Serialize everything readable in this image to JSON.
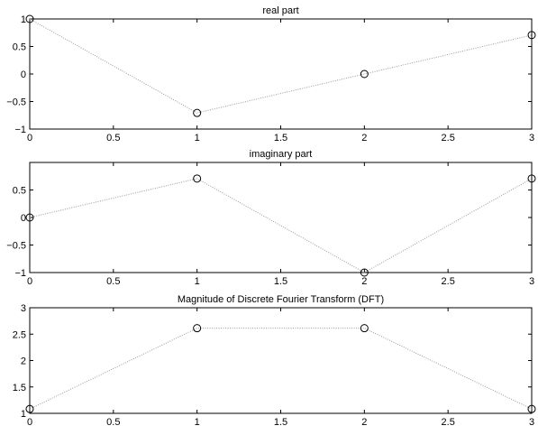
{
  "chart_data": [
    {
      "type": "line",
      "title": "real part",
      "xlabel": "",
      "ylabel": "",
      "xlim": [
        0,
        3
      ],
      "ylim": [
        -1,
        1
      ],
      "xticks": [
        0,
        0.5,
        1,
        1.5,
        2,
        2.5,
        3
      ],
      "xtick_labels": [
        "0",
        "0.5",
        "1",
        "1.5",
        "2",
        "2.5",
        "3"
      ],
      "yticks": [
        -1,
        -0.5,
        0,
        0.5,
        1
      ],
      "ytick_labels": [
        "−1",
        "−0.5",
        "0",
        "0.5",
        "1"
      ],
      "marker": "circle",
      "line_style": "dotted",
      "grid": false,
      "x": [
        0,
        1,
        2,
        3
      ],
      "y": [
        1,
        -0.7071,
        0,
        0.7071
      ]
    },
    {
      "type": "line",
      "title": "imaginary part",
      "xlabel": "",
      "ylabel": "",
      "xlim": [
        0,
        3
      ],
      "ylim": [
        -1,
        1
      ],
      "xticks": [
        0,
        0.5,
        1,
        1.5,
        2,
        2.5,
        3
      ],
      "xtick_labels": [
        "0",
        "0.5",
        "1",
        "1.5",
        "2",
        "2.5",
        "3"
      ],
      "yticks": [
        -1,
        -0.5,
        0,
        0.5
      ],
      "ytick_labels": [
        "−1",
        "−0.5",
        "0",
        "0.5"
      ],
      "marker": "circle",
      "line_style": "dotted",
      "grid": false,
      "x": [
        0,
        1,
        2,
        3
      ],
      "y": [
        0,
        0.7071,
        -1,
        0.7071
      ]
    },
    {
      "type": "line",
      "title": "Magnitude of Discrete Fourier Transform (DFT)",
      "xlabel": "",
      "ylabel": "",
      "xlim": [
        0,
        3
      ],
      "ylim": [
        1,
        3
      ],
      "xticks": [
        0,
        0.5,
        1,
        1.5,
        2,
        2.5,
        3
      ],
      "xtick_labels": [
        "0",
        "0.5",
        "1",
        "1.5",
        "2",
        "2.5",
        "3"
      ],
      "yticks": [
        1,
        1.5,
        2,
        2.5,
        3
      ],
      "ytick_labels": [
        "1",
        "1.5",
        "2",
        "2.5",
        "3"
      ],
      "marker": "circle",
      "line_style": "dotted",
      "grid": false,
      "x": [
        0,
        1,
        2,
        3
      ],
      "y": [
        1.0824,
        2.6131,
        2.6131,
        1.0824
      ]
    }
  ]
}
